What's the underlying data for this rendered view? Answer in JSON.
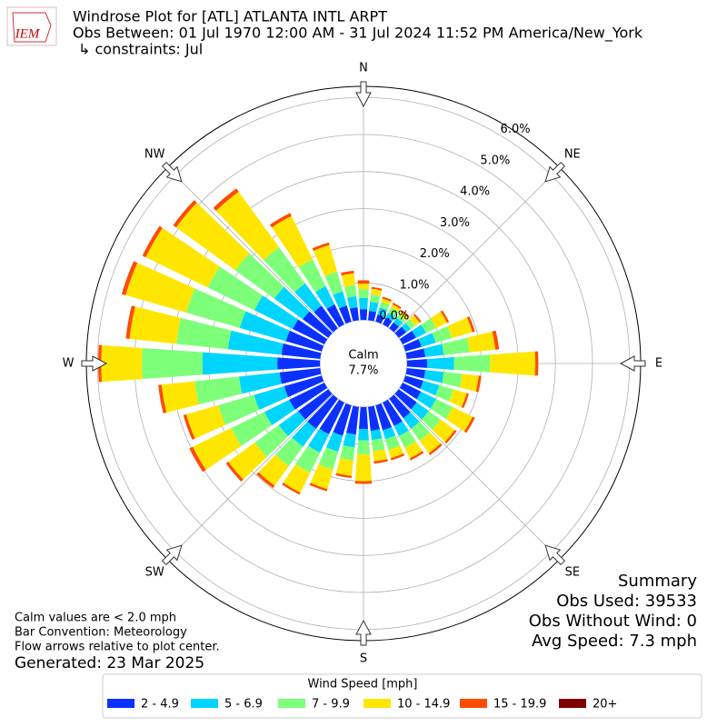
{
  "chart_data": {
    "type": "windrose",
    "logo": "IEM",
    "title": "Windrose Plot for [ATL] ATLANTA INTL ARPT",
    "subtitle": "Obs Between: 01 Jul 1970 12:00 AM - 31 Jul 2024 11:52 PM America/New_York",
    "constraints": "↳ constraints: Jul",
    "calm_label": "Calm",
    "calm_value": {
      "value": 7.7,
      "label": "7.7%"
    },
    "theta": [
      0,
      10,
      20,
      30,
      40,
      50,
      60,
      70,
      80,
      90,
      100,
      110,
      120,
      130,
      140,
      150,
      160,
      170,
      180,
      190,
      200,
      210,
      220,
      230,
      240,
      250,
      260,
      270,
      280,
      290,
      300,
      310,
      320,
      330,
      340,
      350
    ],
    "compass": [
      {
        "value": 0,
        "label": "N"
      },
      {
        "value": 45,
        "label": "NE"
      },
      {
        "value": 90,
        "label": "E"
      },
      {
        "value": 135,
        "label": "SE"
      },
      {
        "value": 180,
        "label": "S"
      },
      {
        "value": 225,
        "label": "SW"
      },
      {
        "value": 270,
        "label": "W"
      },
      {
        "value": 315,
        "label": "NW"
      }
    ],
    "rlim": [
      0,
      6.3
    ],
    "rticks": [
      {
        "value": 0,
        "label": "0.0%"
      },
      {
        "value": 1,
        "label": "1.0%"
      },
      {
        "value": 2,
        "label": "2.0%"
      },
      {
        "value": 3,
        "label": "3.0%"
      },
      {
        "value": 4,
        "label": "4.0%"
      },
      {
        "value": 5,
        "label": "5.0%"
      },
      {
        "value": 6,
        "label": "6.0%"
      }
    ],
    "grid": true,
    "legend_title": "Wind Speed [mph]",
    "series": [
      {
        "name": "2 - 4.9",
        "color": "#0a31ff",
        "values": [
          0.29,
          0.25,
          0.2,
          0.2,
          0.2,
          0.25,
          0.4,
          0.45,
          0.5,
          0.54,
          0.5,
          0.5,
          0.55,
          0.6,
          0.65,
          0.7,
          0.7,
          0.65,
          0.59,
          0.75,
          0.85,
          0.95,
          1.0,
          1.0,
          1.05,
          1.05,
          1.1,
          1.15,
          1.05,
          1.0,
          0.95,
          0.85,
          0.75,
          0.6,
          0.45,
          0.35
        ]
      },
      {
        "name": "5 - 6.9",
        "color": "#00d5ff",
        "values": [
          0.3,
          0.25,
          0.2,
          0.15,
          0.15,
          0.15,
          0.3,
          0.4,
          0.5,
          0.73,
          0.5,
          0.45,
          0.45,
          0.4,
          0.35,
          0.3,
          0.25,
          0.25,
          0.31,
          0.35,
          0.45,
          0.55,
          0.6,
          0.65,
          0.75,
          0.85,
          1.1,
          2.02,
          1.45,
          1.3,
          1.15,
          0.95,
          0.75,
          0.55,
          0.4,
          0.3
        ]
      },
      {
        "name": "7 - 9.9",
        "color": "#7dff7a",
        "values": [
          0.24,
          0.2,
          0.15,
          0.15,
          0.1,
          0.15,
          0.3,
          0.45,
          0.7,
          0.97,
          0.5,
          0.4,
          0.5,
          0.4,
          0.4,
          0.35,
          0.3,
          0.3,
          0.37,
          0.35,
          0.5,
          0.6,
          0.65,
          0.8,
          1.0,
          1.0,
          1.2,
          1.63,
          1.4,
          1.5,
          1.4,
          1.3,
          1.2,
          0.8,
          0.55,
          0.3
        ]
      },
      {
        "name": "10 - 14.9",
        "color": "#ffe600",
        "values": [
          0.15,
          0.15,
          0.1,
          0.1,
          0.1,
          0.15,
          0.33,
          0.58,
          0.7,
          1.22,
          0.45,
          0.37,
          0.6,
          0.47,
          0.42,
          0.32,
          0.23,
          0.28,
          0.73,
          0.42,
          0.55,
          0.6,
          0.65,
          0.88,
          1.15,
          0.9,
          0.9,
          1.1,
          1.27,
          1.7,
          1.86,
          1.97,
          1.85,
          1.3,
          0.75,
          0.32
        ]
      },
      {
        "name": "15 - 19.9",
        "color": "#ff4a00",
        "values": [
          0.09,
          0.05,
          0.05,
          0.05,
          0.05,
          0.05,
          0.06,
          0.07,
          0.1,
          0.08,
          0.07,
          0.06,
          0.07,
          0.06,
          0.06,
          0.06,
          0.06,
          0.06,
          0.07,
          0.06,
          0.06,
          0.06,
          0.08,
          0.08,
          0.1,
          0.08,
          0.09,
          0.08,
          0.1,
          0.11,
          0.1,
          0.1,
          0.11,
          0.09,
          0.07,
          0.07
        ]
      },
      {
        "name": "20+",
        "color": "#800000",
        "values": [
          0,
          0,
          0,
          0,
          0,
          0,
          0,
          0,
          0,
          0,
          0,
          0,
          0,
          0,
          0,
          0,
          0,
          0,
          0,
          0,
          0,
          0,
          0,
          0,
          0,
          0,
          0,
          0,
          0,
          0,
          0,
          0,
          0,
          0,
          0,
          0
        ]
      }
    ],
    "summary": [
      "Summary",
      "Obs Used: 39533",
      "Obs Without Wind: 0",
      "Avg Speed: 7.3 mph"
    ],
    "notes": [
      "Calm values are < 2.0 mph",
      "Bar Convention: Meteorology",
      "Flow arrows relative to plot center."
    ],
    "generated": "Generated: 23 Mar 2025"
  }
}
